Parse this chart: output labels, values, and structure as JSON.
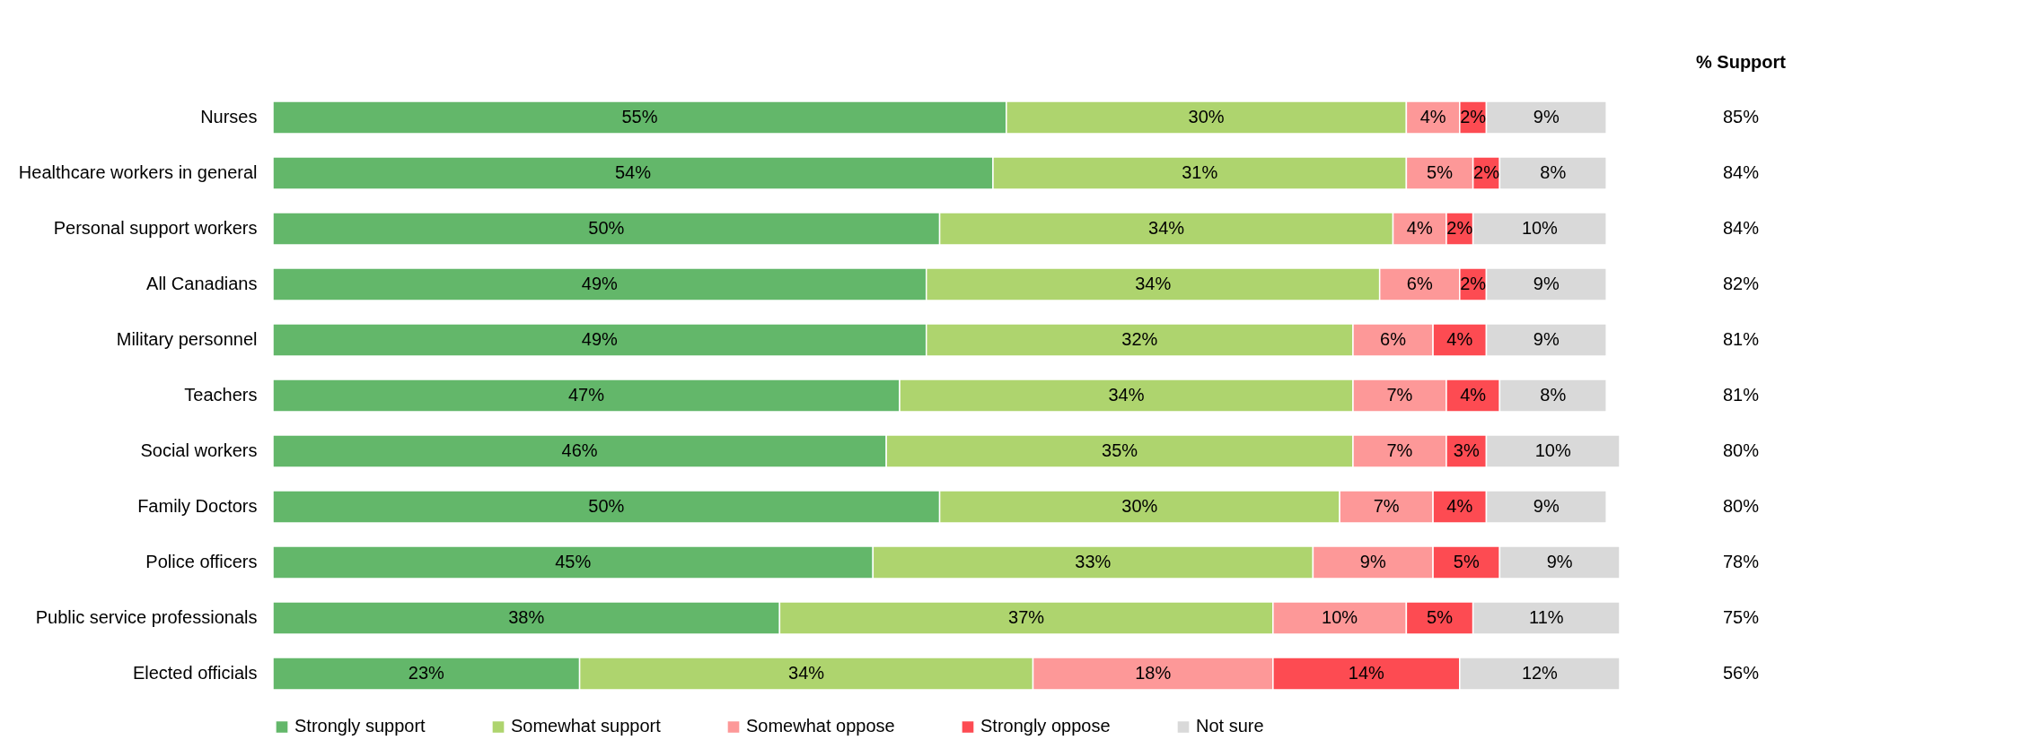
{
  "chart_data": {
    "type": "bar",
    "orientation": "horizontal",
    "stacked": true,
    "tick_labels": "y",
    "legend": "bottom",
    "categories": [
      "Nurses",
      "Healthcare workers in general",
      "Personal support workers",
      "All Canadians",
      "Military personnel",
      "Teachers",
      "Social workers",
      "Family Doctors",
      "Police officers",
      "Public service professionals",
      "Elected officials"
    ],
    "series": [
      {
        "name": "Strongly support",
        "color": "#63b76a",
        "values": [
          55,
          54,
          50,
          49,
          49,
          47,
          46,
          50,
          45,
          38,
          23
        ],
        "value_labels": [
          "55%",
          "54%",
          "50%",
          "49%",
          "49%",
          "47%",
          "46%",
          "50%",
          "45%",
          "38%",
          "23%"
        ]
      },
      {
        "name": "Somewhat support",
        "color": "#aed46e",
        "values": [
          30,
          31,
          34,
          34,
          32,
          34,
          35,
          30,
          33,
          37,
          34
        ],
        "value_labels": [
          "30%",
          "31%",
          "34%",
          "34%",
          "32%",
          "34%",
          "35%",
          "30%",
          "33%",
          "37%",
          "34%"
        ]
      },
      {
        "name": "Somewhat oppose",
        "color": "#fd9898",
        "values": [
          4,
          5,
          4,
          6,
          6,
          7,
          7,
          7,
          9,
          10,
          18
        ],
        "value_labels": [
          "4%",
          "5%",
          "4%",
          "6%",
          "6%",
          "7%",
          "7%",
          "7%",
          "9%",
          "10%",
          "18%"
        ]
      },
      {
        "name": "Strongly oppose",
        "color": "#fd4b52",
        "values": [
          2,
          2,
          2,
          2,
          4,
          4,
          3,
          4,
          5,
          5,
          14
        ],
        "value_labels": [
          "2%",
          "2%",
          "2%",
          "2%",
          "4%",
          "4%",
          "3%",
          "4%",
          "5%",
          "5%",
          "14%"
        ]
      },
      {
        "name": "Not sure",
        "color": "#d9d9d9",
        "values": [
          9,
          8,
          10,
          9,
          9,
          8,
          10,
          9,
          9,
          11,
          12
        ],
        "value_labels": [
          "9%",
          "8%",
          "10%",
          "9%",
          "9%",
          "8%",
          "10%",
          "9%",
          "9%",
          "11%",
          "12%"
        ]
      }
    ],
    "annotations": [
      "% Support",
      "85%",
      "84%",
      "84%",
      "82%",
      "81%",
      "81%",
      "80%",
      "80%",
      "78%",
      "75%",
      "56%"
    ]
  }
}
